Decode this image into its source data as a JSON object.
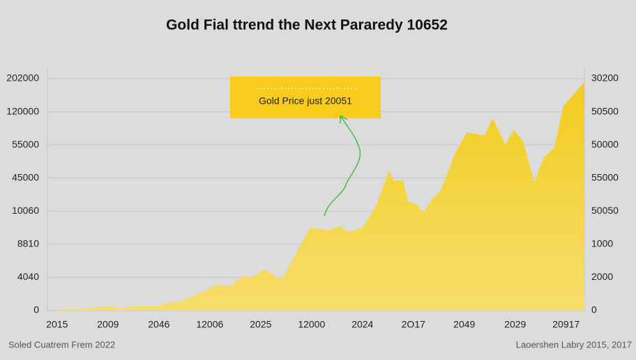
{
  "chart_data": {
    "type": "area",
    "title": "Gold Fial ttrend the Next Pararedy 10652",
    "annotation": "Gold Price just 20051",
    "footer_left": "Soled Cuatrem Frem 2022",
    "footer_right": "Laoershen Labry 2015, 2017",
    "color": "#f2cc1e",
    "annotation_color": "#f8cb1c",
    "arrow_color": "#3fbf3f",
    "grid": true,
    "xlim": [
      -0.19,
      10.36
    ],
    "ylim": [
      0,
      7
    ],
    "y2lim": [
      0,
      7
    ],
    "xticks": [
      {
        "value": 0,
        "label": "2015"
      },
      {
        "value": 1,
        "label": "2009"
      },
      {
        "value": 2,
        "label": "2046"
      },
      {
        "value": 3,
        "label": "12006"
      },
      {
        "value": 4,
        "label": "2025"
      },
      {
        "value": 5,
        "label": "12000"
      },
      {
        "value": 6,
        "label": "2024"
      },
      {
        "value": 7,
        "label": "2O17"
      },
      {
        "value": 8,
        "label": "2049"
      },
      {
        "value": 9,
        "label": "2029"
      },
      {
        "value": 10,
        "label": "20917"
      }
    ],
    "yticks": [
      {
        "value": 0,
        "label": "0"
      },
      {
        "value": 1,
        "label": "4040"
      },
      {
        "value": 2,
        "label": "8810"
      },
      {
        "value": 3,
        "label": "10060"
      },
      {
        "value": 4,
        "label": "45000"
      },
      {
        "value": 5,
        "label": "55000"
      },
      {
        "value": 6,
        "label": "120000"
      },
      {
        "value": 7,
        "label": "202000"
      }
    ],
    "y2ticks": [
      {
        "value": 0,
        "label": "0"
      },
      {
        "value": 1,
        "label": "2000"
      },
      {
        "value": 2,
        "label": "1000"
      },
      {
        "value": 3,
        "label": "50050"
      },
      {
        "value": 4,
        "label": "55000"
      },
      {
        "value": 5,
        "label": "50000"
      },
      {
        "value": 6,
        "label": "50500"
      },
      {
        "value": 7,
        "label": "30200"
      }
    ],
    "x": [
      0.04,
      0.52,
      1.0,
      1.27,
      1.62,
      1.96,
      2.23,
      2.44,
      2.78,
      3.12,
      3.4,
      3.67,
      3.81,
      4.08,
      4.36,
      4.42,
      4.97,
      5.32,
      5.56,
      5.73,
      6.0,
      6.27,
      6.52,
      6.62,
      6.79,
      6.9,
      7.07,
      7.19,
      7.37,
      7.53,
      7.82,
      8.05,
      8.4,
      8.56,
      8.81,
      8.97,
      9.15,
      9.38,
      9.56,
      9.77,
      9.95,
      10.36
    ],
    "values": [
      0.04,
      0.06,
      0.13,
      0.06,
      0.15,
      0.13,
      0.25,
      0.29,
      0.5,
      0.76,
      0.74,
      1.05,
      0.99,
      1.24,
      0.97,
      0.95,
      2.5,
      2.42,
      2.54,
      2.37,
      2.5,
      3.17,
      4.22,
      3.91,
      3.95,
      3.28,
      3.21,
      2.96,
      3.36,
      3.59,
      4.75,
      5.38,
      5.29,
      5.8,
      5.0,
      5.46,
      5.13,
      3.87,
      4.62,
      4.92,
      6.18,
      6.89
    ]
  }
}
